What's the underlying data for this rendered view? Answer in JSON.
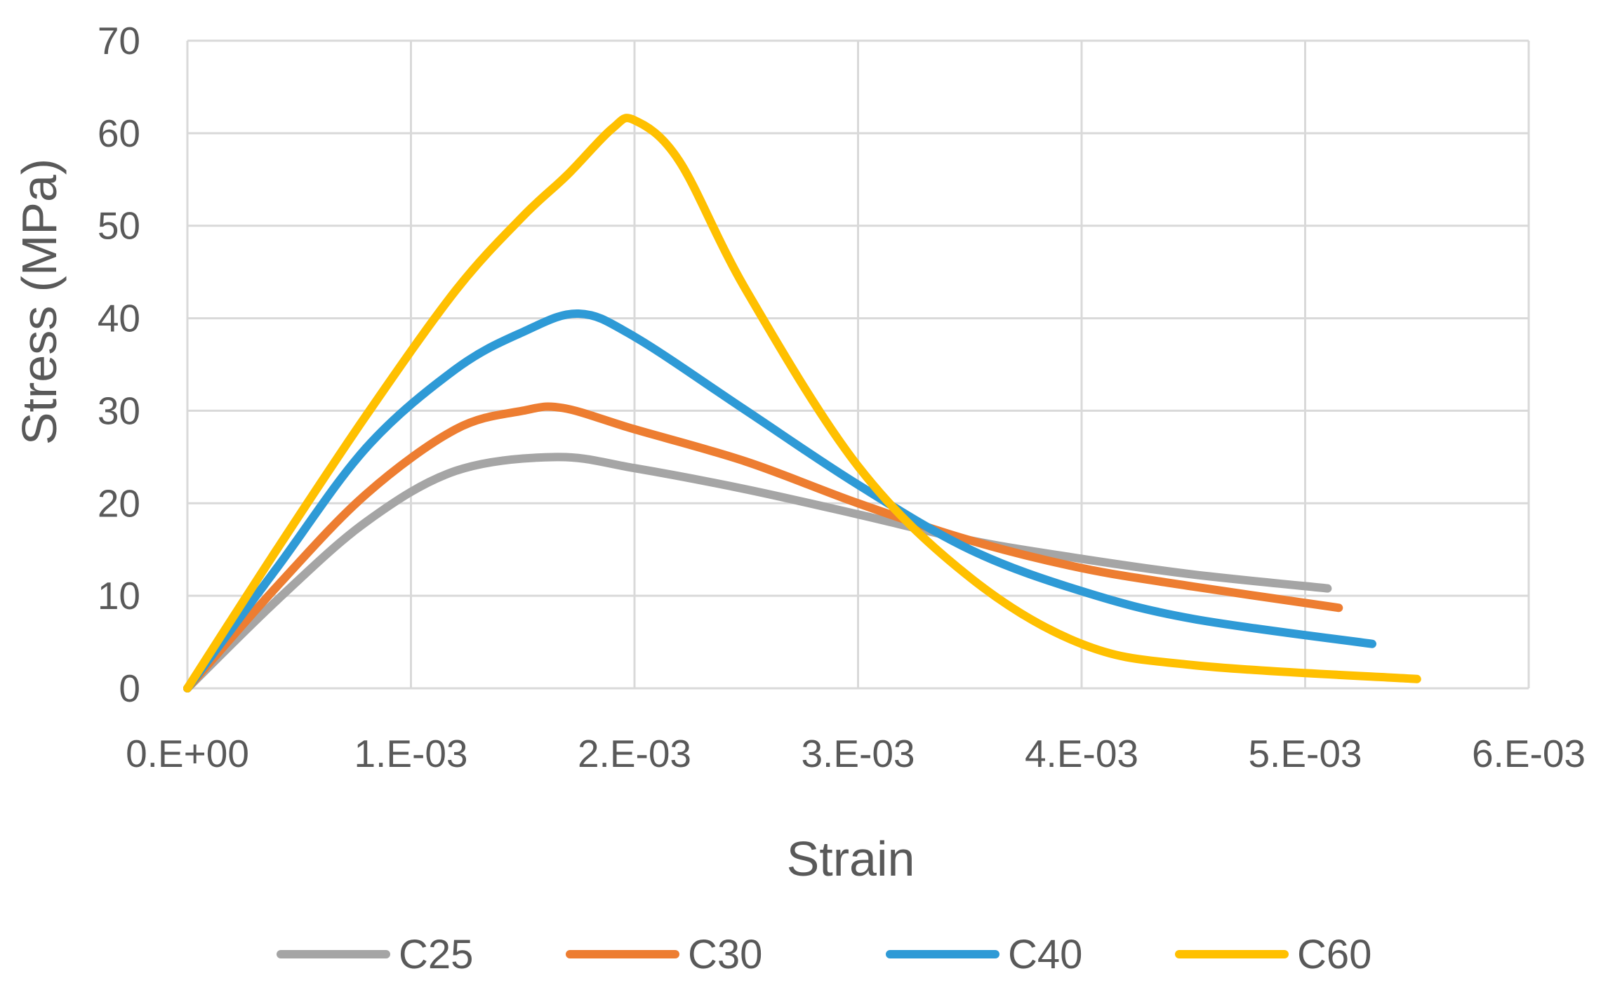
{
  "chart_data": {
    "type": "line",
    "title": "",
    "xlabel": "Strain",
    "ylabel": "Stress (MPa)",
    "xlim": [
      0,
      0.006
    ],
    "ylim": [
      0,
      70
    ],
    "x_ticks": [
      {
        "value": 0,
        "label": "0.E+00"
      },
      {
        "value": 0.001,
        "label": "1.E-03"
      },
      {
        "value": 0.002,
        "label": "2.E-03"
      },
      {
        "value": 0.003,
        "label": "3.E-03"
      },
      {
        "value": 0.004,
        "label": "4.E-03"
      },
      {
        "value": 0.005,
        "label": "5.E-03"
      },
      {
        "value": 0.006,
        "label": "6.E-03"
      }
    ],
    "y_ticks": [
      {
        "value": 0,
        "label": "0"
      },
      {
        "value": 10,
        "label": "10"
      },
      {
        "value": 20,
        "label": "20"
      },
      {
        "value": 30,
        "label": "30"
      },
      {
        "value": 40,
        "label": "40"
      },
      {
        "value": 50,
        "label": "50"
      },
      {
        "value": 60,
        "label": "60"
      },
      {
        "value": 70,
        "label": "70"
      }
    ],
    "grid": true,
    "legend_position": "bottom",
    "series": [
      {
        "name": "C25",
        "color": "#A5A5A5",
        "x": [
          0,
          0.0004,
          0.0008,
          0.0012,
          0.00165,
          0.002,
          0.0025,
          0.003,
          0.0035,
          0.004,
          0.0045,
          0.0051
        ],
        "y": [
          0,
          9.5,
          18,
          23.5,
          25,
          23.8,
          21.5,
          18.8,
          16,
          14,
          12.3,
          10.8
        ]
      },
      {
        "name": "C30",
        "color": "#ED7D31",
        "x": [
          0,
          0.0004,
          0.0008,
          0.0012,
          0.0015,
          0.00168,
          0.002,
          0.0025,
          0.003,
          0.0035,
          0.004,
          0.0045,
          0.00515
        ],
        "y": [
          0,
          11,
          21,
          28,
          30,
          30.3,
          28,
          24.5,
          20,
          16,
          13,
          11,
          8.7
        ]
      },
      {
        "name": "C40",
        "color": "#2E9AD6",
        "x": [
          0,
          0.0004,
          0.0008,
          0.0012,
          0.0015,
          0.00175,
          0.002,
          0.0025,
          0.003,
          0.0035,
          0.004,
          0.0045,
          0.0053
        ],
        "y": [
          0,
          13,
          26,
          34.5,
          38.5,
          40.5,
          38,
          30,
          22,
          15,
          10.5,
          7.5,
          4.8
        ]
      },
      {
        "name": "C60",
        "color": "#FFC000",
        "x": [
          0,
          0.0004,
          0.0008,
          0.0012,
          0.0015,
          0.0017,
          0.0019,
          0.002,
          0.0022,
          0.0025,
          0.003,
          0.0035,
          0.004,
          0.0045,
          0.0055
        ],
        "y": [
          0,
          15,
          29.5,
          43,
          51,
          55.5,
          60.5,
          61.4,
          57,
          43,
          24,
          12,
          4.8,
          2.5,
          1
        ]
      }
    ]
  }
}
